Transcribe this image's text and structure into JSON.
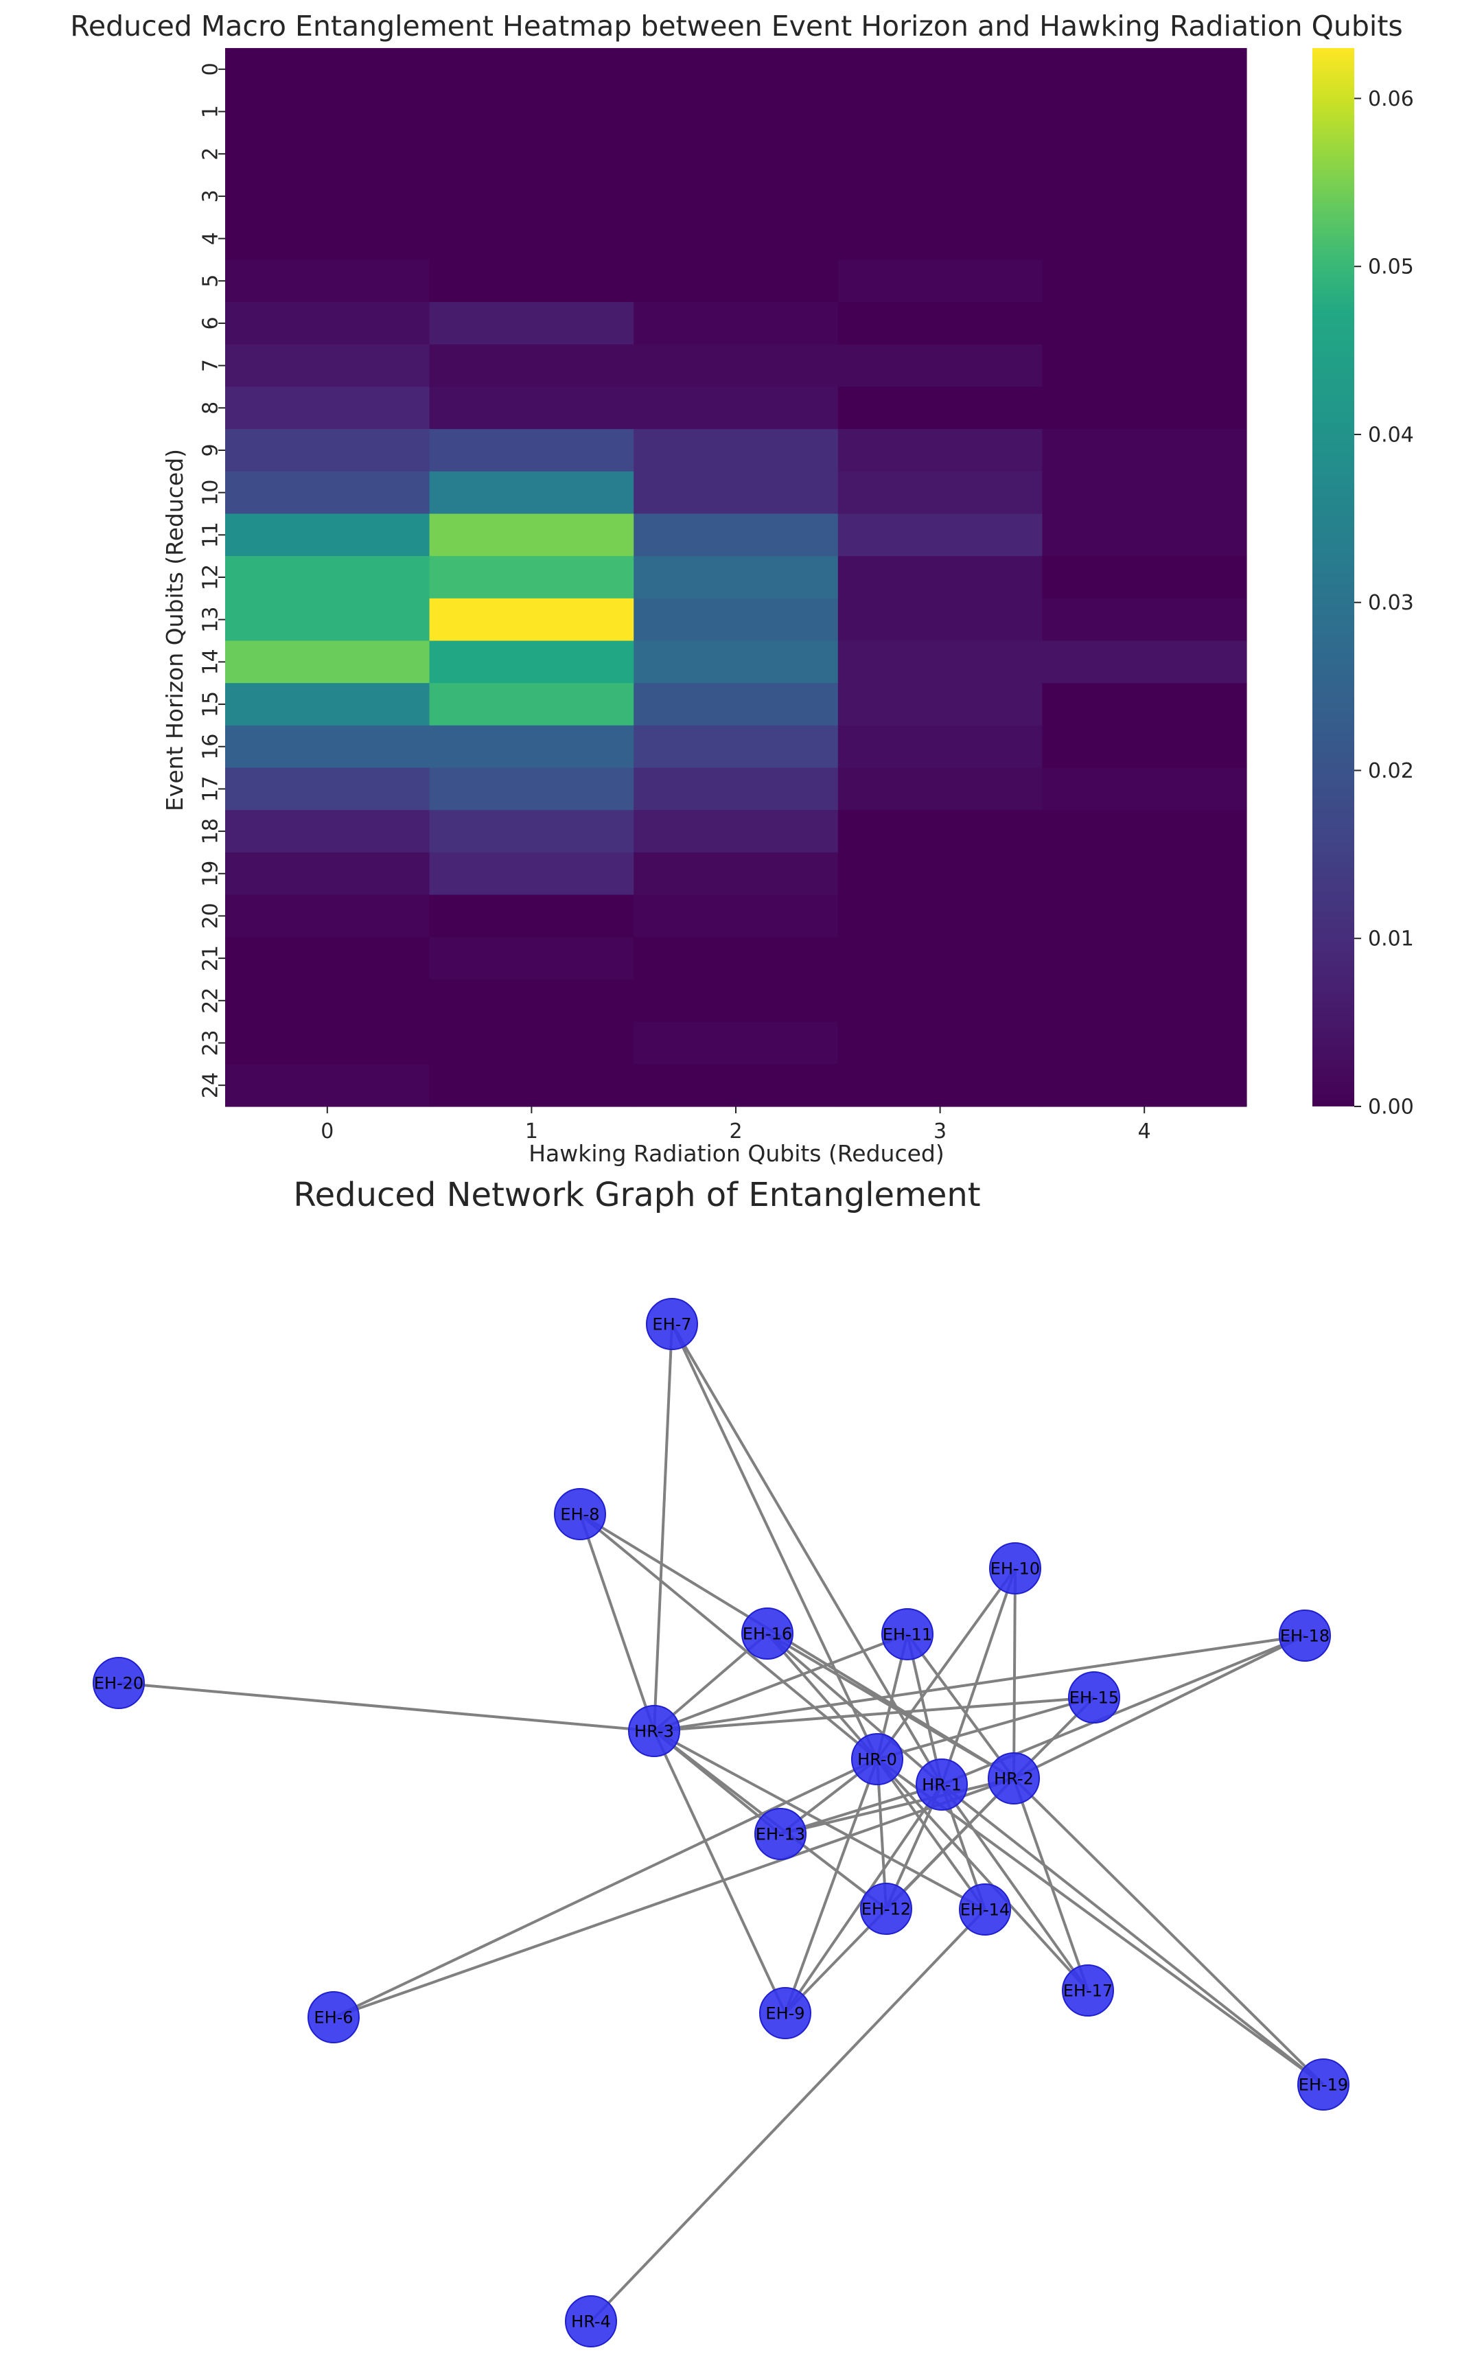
{
  "chart_data": [
    {
      "type": "heatmap",
      "title": "Reduced Macro Entanglement Heatmap between Event Horizon and Hawking Radiation Qubits",
      "xlabel": "Hawking Radiation Qubits (Reduced)",
      "ylabel": "Event Horizon Qubits (Reduced)",
      "x_categories": [
        "0",
        "1",
        "2",
        "3",
        "4"
      ],
      "y_categories": [
        "0",
        "1",
        "2",
        "3",
        "4",
        "5",
        "6",
        "7",
        "8",
        "9",
        "10",
        "11",
        "12",
        "13",
        "14",
        "15",
        "16",
        "17",
        "18",
        "19",
        "20",
        "21",
        "22",
        "23",
        "24"
      ],
      "values": [
        [
          0.0,
          0.0,
          0.0,
          0.0,
          0.0
        ],
        [
          0.0,
          0.0,
          0.0,
          0.0,
          0.0
        ],
        [
          0.0,
          0.0,
          0.0,
          0.0,
          0.0
        ],
        [
          0.0,
          0.0,
          0.0,
          0.0,
          0.0
        ],
        [
          0.0,
          0.0,
          0.0,
          0.0,
          0.0
        ],
        [
          0.001,
          0.0,
          0.0,
          0.001,
          0.0
        ],
        [
          0.003,
          0.006,
          0.001,
          0.0,
          0.0
        ],
        [
          0.005,
          0.002,
          0.002,
          0.002,
          0.0
        ],
        [
          0.008,
          0.003,
          0.003,
          0.0,
          0.0
        ],
        [
          0.014,
          0.017,
          0.01,
          0.004,
          0.001
        ],
        [
          0.018,
          0.033,
          0.01,
          0.005,
          0.001
        ],
        [
          0.039,
          0.055,
          0.022,
          0.008,
          0.001
        ],
        [
          0.049,
          0.051,
          0.027,
          0.003,
          0.0
        ],
        [
          0.049,
          0.063,
          0.025,
          0.003,
          0.001
        ],
        [
          0.054,
          0.047,
          0.027,
          0.004,
          0.004
        ],
        [
          0.036,
          0.05,
          0.021,
          0.004,
          0.0
        ],
        [
          0.024,
          0.024,
          0.015,
          0.003,
          0.0
        ],
        [
          0.015,
          0.02,
          0.01,
          0.002,
          0.001
        ],
        [
          0.007,
          0.011,
          0.006,
          0.0,
          0.0
        ],
        [
          0.003,
          0.008,
          0.002,
          0.0,
          0.0
        ],
        [
          0.001,
          0.0,
          0.001,
          0.0,
          0.0
        ],
        [
          0.0,
          0.001,
          0.0,
          0.0,
          0.0
        ],
        [
          0.0,
          0.0,
          0.0,
          0.0,
          0.0
        ],
        [
          0.0,
          0.0,
          0.001,
          0.0,
          0.0
        ],
        [
          0.001,
          0.0,
          0.0,
          0.0,
          0.0
        ]
      ],
      "colormap": "viridis",
      "colorbar": {
        "min": 0.0,
        "max": 0.063,
        "ticks": [
          "0.00",
          "0.01",
          "0.02",
          "0.03",
          "0.04",
          "0.05",
          "0.06"
        ],
        "tick_values": [
          0.0,
          0.01,
          0.02,
          0.03,
          0.04,
          0.05,
          0.06
        ]
      }
    },
    {
      "type": "network",
      "title": "Reduced Network Graph of Entanglement",
      "node_color": "#3333ee",
      "edge_color": "#808080",
      "nodes": [
        "EH-7",
        "EH-8",
        "EH-10",
        "EH-16",
        "EH-11",
        "EH-18",
        "EH-20",
        "EH-15",
        "HR-3",
        "HR-0",
        "HR-1",
        "HR-2",
        "EH-13",
        "EH-12",
        "EH-14",
        "EH-6",
        "EH-9",
        "EH-17",
        "EH-19",
        "HR-4"
      ],
      "edges": [
        [
          "HR-3",
          "EH-7"
        ],
        [
          "HR-3",
          "EH-8"
        ],
        [
          "HR-3",
          "EH-16"
        ],
        [
          "HR-3",
          "EH-11"
        ],
        [
          "HR-3",
          "EH-18"
        ],
        [
          "HR-3",
          "EH-20"
        ],
        [
          "HR-3",
          "EH-15"
        ],
        [
          "HR-3",
          "EH-13"
        ],
        [
          "HR-3",
          "EH-12"
        ],
        [
          "HR-3",
          "EH-14"
        ],
        [
          "HR-3",
          "EH-9"
        ],
        [
          "HR-0",
          "EH-7"
        ],
        [
          "HR-0",
          "EH-8"
        ],
        [
          "HR-0",
          "EH-10"
        ],
        [
          "HR-0",
          "EH-16"
        ],
        [
          "HR-0",
          "EH-11"
        ],
        [
          "HR-0",
          "EH-15"
        ],
        [
          "HR-0",
          "EH-13"
        ],
        [
          "HR-0",
          "EH-12"
        ],
        [
          "HR-0",
          "EH-14"
        ],
        [
          "HR-0",
          "EH-6"
        ],
        [
          "HR-0",
          "EH-9"
        ],
        [
          "HR-0",
          "EH-17"
        ],
        [
          "HR-0",
          "EH-19"
        ],
        [
          "HR-1",
          "EH-7"
        ],
        [
          "HR-1",
          "EH-10"
        ],
        [
          "HR-1",
          "EH-16"
        ],
        [
          "HR-1",
          "EH-11"
        ],
        [
          "HR-1",
          "EH-18"
        ],
        [
          "HR-1",
          "EH-13"
        ],
        [
          "HR-1",
          "EH-12"
        ],
        [
          "HR-1",
          "EH-14"
        ],
        [
          "HR-1",
          "EH-9"
        ],
        [
          "HR-1",
          "EH-17"
        ],
        [
          "HR-1",
          "EH-19"
        ],
        [
          "HR-2",
          "EH-8"
        ],
        [
          "HR-2",
          "EH-10"
        ],
        [
          "HR-2",
          "EH-16"
        ],
        [
          "HR-2",
          "EH-11"
        ],
        [
          "HR-2",
          "EH-18"
        ],
        [
          "HR-2",
          "EH-15"
        ],
        [
          "HR-2",
          "EH-13"
        ],
        [
          "HR-2",
          "EH-12"
        ],
        [
          "HR-2",
          "EH-6"
        ],
        [
          "HR-2",
          "EH-9"
        ],
        [
          "HR-2",
          "EH-17"
        ],
        [
          "HR-2",
          "EH-19"
        ],
        [
          "HR-4",
          "EH-14"
        ]
      ]
    }
  ]
}
